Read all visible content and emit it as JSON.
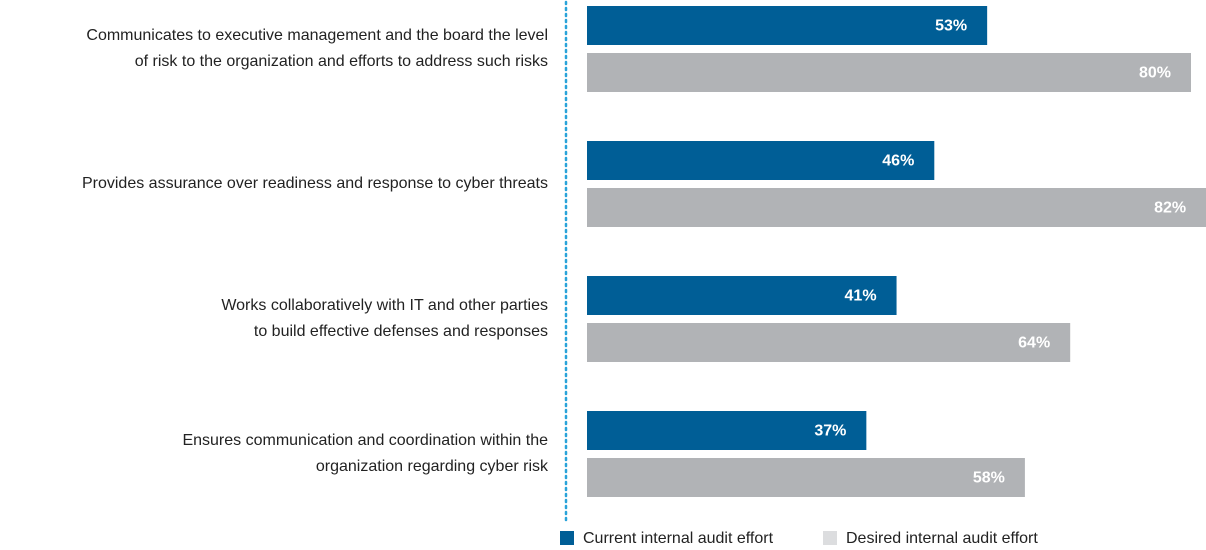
{
  "chart_data": {
    "type": "bar",
    "categories": [
      [
        "Communicates to executive management and the board the level",
        "of risk to the organization and efforts to address such risks"
      ],
      [
        "Provides assurance over readiness and response to cyber threats"
      ],
      [
        "Works collaboratively with IT and other parties",
        "to build effective defenses and responses"
      ],
      [
        "Ensures communication and coordination within the",
        "organization regarding cyber risk"
      ]
    ],
    "series": [
      {
        "name": "Current internal audit effort",
        "color": "#005e96",
        "values": [
          53,
          46,
          41,
          37
        ],
        "value_labels": [
          "53%",
          "46%",
          "41%",
          "37%"
        ]
      },
      {
        "name": "Desired internal audit effort",
        "color": "#b1b3b6",
        "values": [
          80,
          82,
          64,
          58
        ],
        "value_labels": [
          "80%",
          "82%",
          "64%",
          "58%"
        ]
      }
    ]
  }
}
